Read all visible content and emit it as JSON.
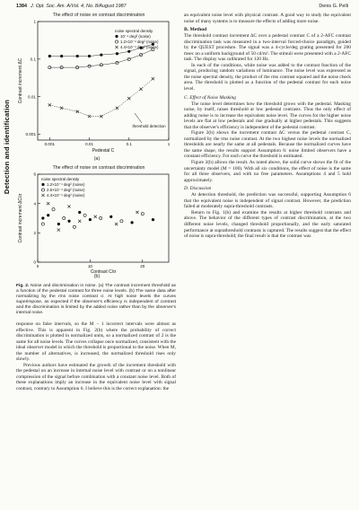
{
  "header": {
    "page": "1384",
    "journal": "J. Opt. Soc. Am. A/Vol. 4, No. 8/August 1987",
    "author": "Denis G. Pelli"
  },
  "side_title": "Detection and identification",
  "figure_a": {
    "title": "The effect of noise on contrast discrimination",
    "legend": [
      "noise spectral density",
      "10⁻⁴ deg² (noise)",
      "1.2×10⁻⁴ deg² (noise)",
      "4.4×10⁻⁴ deg² (noise)"
    ],
    "ylabel": "Contrast increment ΔC",
    "xlabel": "Pedestal C",
    "annotation": "threshold detection",
    "panel": "(a)"
  },
  "figure_b": {
    "title": "The effect of noise on contrast discrimination",
    "legend": [
      "noise spectral density",
      "1.2×10⁻⁴ deg² (noise)",
      "2.6×10⁻⁴ deg² (noise)",
      "4.4×10⁻⁴ deg² (noise)"
    ],
    "ylabel": "Contrast increment ΔC/σ",
    "xlabel": "Contrast C/σ",
    "panel": "(b)"
  },
  "chart_data": [
    {
      "type": "scatter",
      "title": "The effect of noise on contrast discrimination",
      "xlabel": "Pedestal C",
      "ylabel": "Contrast increment ΔC",
      "xscale": "log",
      "yscale": "log",
      "xticks": [
        "0.001",
        "0.01",
        "0.1",
        "1"
      ],
      "yticks": [
        "0.001",
        "0.01",
        "0.1",
        "1"
      ],
      "xlim": [
        0.0005,
        1
      ],
      "ylim": [
        0.0007,
        1
      ],
      "series": [
        {
          "marker": "filled-circle",
          "x": [
            0.001,
            0.002,
            0.005,
            0.01,
            0.02,
            0.05,
            0.1,
            0.2,
            0.4
          ],
          "y": [
            0.12,
            0.12,
            0.12,
            0.12,
            0.13,
            0.14,
            0.16,
            0.2,
            0.25
          ]
        },
        {
          "marker": "open-circle",
          "x": [
            0.001,
            0.002,
            0.005,
            0.01,
            0.02,
            0.05,
            0.1,
            0.2,
            0.4
          ],
          "y": [
            0.06,
            0.06,
            0.06,
            0.065,
            0.07,
            0.08,
            0.1,
            0.13,
            0.18
          ]
        },
        {
          "marker": "cross",
          "x": [
            0.001,
            0.002,
            0.005,
            0.01,
            0.02,
            0.05,
            0.1,
            0.2,
            0.4
          ],
          "y": [
            0.006,
            0.005,
            0.004,
            0.003,
            0.003,
            0.005,
            0.009,
            0.016,
            0.03
          ]
        }
      ]
    },
    {
      "type": "scatter",
      "title": "The effect of noise on contrast discrimination",
      "xlabel": "Contrast C/σ",
      "ylabel": "Contrast increment ΔC/σ",
      "xticks": [
        "0",
        "10",
        "20"
      ],
      "yticks": [
        "0",
        "2",
        "4",
        "6"
      ],
      "xlim": [
        0,
        25
      ],
      "ylim": [
        0,
        6
      ],
      "series": [
        {
          "marker": "filled-circle",
          "x": [
            1,
            2,
            4,
            6,
            8,
            10,
            14,
            18,
            22
          ],
          "y": [
            3.0,
            3.2,
            2.6,
            2.8,
            3.4,
            2.9,
            3.1,
            2.7,
            2.9
          ]
        },
        {
          "marker": "open-circle",
          "x": [
            1,
            3,
            5,
            7,
            9,
            12,
            16,
            20
          ],
          "y": [
            2.6,
            3.6,
            3.0,
            2.4,
            3.2,
            3.0,
            2.8,
            3.3
          ]
        },
        {
          "marker": "cross",
          "x": [
            2,
            4,
            6,
            8,
            11,
            15,
            19
          ],
          "y": [
            4.0,
            2.2,
            3.8,
            2.8,
            3.1,
            2.6,
            3.4
          ]
        }
      ]
    }
  ],
  "caption": {
    "label": "Fig. 2.",
    "text": "Noise and discrimination in noise. (a) The contrast increment threshold as a function of the pedestal contrast for three noise levels. (b) The same data after normalizing by the rms noise contrast σ. At high noise levels the curves superimpose, as expected if the observer's efficiency is independent of contrast and the discrimination is limited by the added noise rather than by the observer's internal noise."
  },
  "left_body": [
    "response on false intervals, so the M − 1 incorrect intervals were almost as effective. This is apparent in Fig. 2(b) where the probability of correct discrimination is plotted in normalized units, so a normalized contrast of 2 is the same for all noise levels. The curves collapse once normalized, consistent with the ideal observer model in which the threshold is proportional to the noise. When M, the number of alternatives, is increased, the normalized threshold rises only slowly.",
    "Previous authors have estimated the growth of the increment threshold with the pedestal on an increase in internal noise level with contrast or on a nonlinear compression of the signal before combination with a constant noise level. Both of these explanations imply an increase in the equivalent noise level with signal contrast, contrary to Assumption 6. I believe this is the correct explanation: the"
  ],
  "right_top": "an equivalent noise level with physical contrast. A good way to study the equivalent noise of many systems is to measure the effects of adding more noise.",
  "section_methods": "B. Method",
  "methods_paras": [
    "The threshold contrast increment ΔC over a pedestal contrast C of a 2-AFC contrast discrimination task was measured in a two-interval forced-choice paradigm, guided by the QUEST procedure. The signal was a 4-cycle/deg grating presented for 200 msec on a uniform background of 50 cd/m². The stimuli were presented with a 2-AFC task. The display was calibrated for 120 Hz.",
    "In each of the conditions, white noise was added to the contrast function of the signal, producing random variations of luminance. The noise level was expressed as the noise spectral density, the product of the rms contrast squared and the noise check area. The threshold is plotted as a function of the pedestal contrast for each noise level."
  ],
  "sub_noise": "C. Effect of Noise Masking",
  "noise_paras": [
    "The noise level determines how the threshold grows with the pedestal. Masking noise, by itself, raises threshold at low pedestal contrasts. Thus the only effect of adding noise is to increase the equivalent noise level. The curves for the higher noise levels are flat at low pedestals and rise gradually at higher pedestals. This suggests that the observer's efficiency is independent of the pedestal contrast.",
    "Figure 2(b) shows the increment contrast ΔC versus the pedestal contrast C, normalized by the rms noise contrast. At the two highest noise levels the normalized thresholds are nearly the same at all pedestals. Because the normalized curves have the same shape, the results support Assumption 6: noise limited observers have a constant efficiency. For each curve the threshold is estimated.",
    "Figure 2(b) allows the result. As noted above, the solid curve shows the fit of the uncertainty model (M = 100). With all six conditions, the effect of noise is the same for all three observers, and with no free parameters. Assumptions 4 and 5 hold approximately."
  ],
  "sub_discussion": "D. Discussion",
  "discussion_paras": [
    "At detection threshold, the prediction was successful, supporting Assumption 6 that the equivalent noise is independent of signal contrast. However, the prediction failed at moderately supra-threshold contrasts.",
    "Return to Fig. 1(b) and examine the results at higher threshold contrasts and above. The behavior of the different types of contrast discrimination, at the two different noise levels, changed threshold proportionally, and the early saturated performance at suprathreshold contrasts is captured. The results suggest that the effect of noise is supra-threshold; the final result is that the contrast was"
  ]
}
